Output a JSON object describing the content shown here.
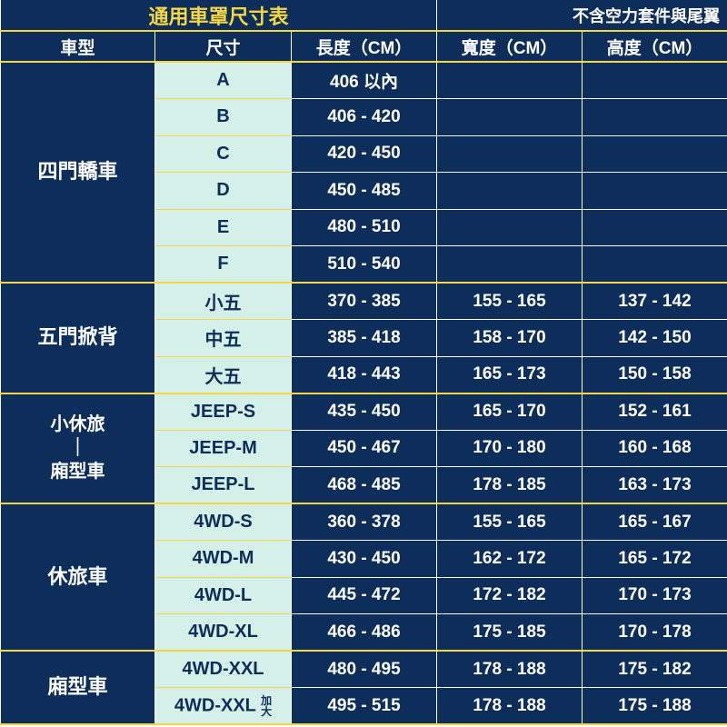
{
  "title": "通用車罩尺寸表",
  "subtitle": "不含空力套件與尾翼",
  "columns": [
    "車型",
    "尺寸",
    "長度（CM）",
    "寬度（CM）",
    "高度（CM）"
  ],
  "colors": {
    "bg_dark": "#0d2d5a",
    "accent_yellow": "#f5d742",
    "size_bg": "#d5f0e8",
    "text_white": "#ffffff"
  },
  "categories": [
    {
      "name": "四門轎車",
      "rows": [
        {
          "size": "A",
          "length": "406 以內",
          "width": "",
          "height": ""
        },
        {
          "size": "B",
          "length": "406 - 420",
          "width": "",
          "height": ""
        },
        {
          "size": "C",
          "length": "420 - 450",
          "width": "",
          "height": ""
        },
        {
          "size": "D",
          "length": "450 - 485",
          "width": "",
          "height": ""
        },
        {
          "size": "E",
          "length": "480 - 510",
          "width": "",
          "height": ""
        },
        {
          "size": "F",
          "length": "510 - 540",
          "width": "",
          "height": ""
        }
      ]
    },
    {
      "name": "五門掀背",
      "rows": [
        {
          "size": "小五",
          "length": "370 - 385",
          "width": "155 - 165",
          "height": "137 - 142"
        },
        {
          "size": "中五",
          "length": "385 - 418",
          "width": "158 - 170",
          "height": "142 - 150"
        },
        {
          "size": "大五",
          "length": "418 - 443",
          "width": "165 - 173",
          "height": "150 - 158"
        }
      ]
    },
    {
      "name": "小休旅\n｜\n廂型車",
      "small": true,
      "rows": [
        {
          "size": "JEEP-S",
          "length": "435 - 450",
          "width": "165 - 170",
          "height": "152 - 161"
        },
        {
          "size": "JEEP-M",
          "length": "450 - 467",
          "width": "170 - 180",
          "height": "160 - 168"
        },
        {
          "size": "JEEP-L",
          "length": "468 - 485",
          "width": "178 - 185",
          "height": "163 - 173"
        }
      ]
    },
    {
      "name": "休旅車",
      "rows": [
        {
          "size": "4WD-S",
          "length": "360 - 378",
          "width": "155 - 165",
          "height": "165 - 167"
        },
        {
          "size": "4WD-M",
          "length": "430 - 450",
          "width": "162 - 172",
          "height": "165 - 172"
        },
        {
          "size": "4WD-L",
          "length": "445 - 472",
          "width": "172 - 182",
          "height": "170 - 173"
        },
        {
          "size": "4WD-XL",
          "length": "466 - 486",
          "width": "175 - 185",
          "height": "170 - 178"
        }
      ]
    },
    {
      "name": "廂型車",
      "rows": [
        {
          "size": "4WD-XXL",
          "length": "480 - 495",
          "width": "178 - 188",
          "height": "175 - 182"
        },
        {
          "size": "4WD-XXL",
          "size_suffix": "加\n大",
          "length": "495 - 515",
          "width": "178 - 188",
          "height": "175 - 188"
        }
      ]
    }
  ]
}
